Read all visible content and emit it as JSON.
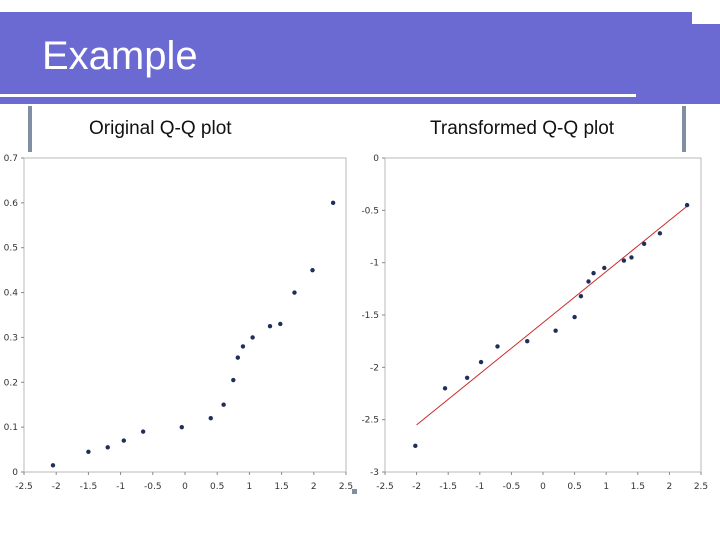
{
  "slide": {
    "title": "Example",
    "left_subtitle": "Original Q-Q plot",
    "right_subtitle": "Transformed Q-Q plot"
  },
  "colors": {
    "title_band": "#6a6ad2",
    "accent_bar": "#7f8ea3",
    "points": "#1f2f5a",
    "fit_line": "#cc2a2a"
  },
  "chart_data": [
    {
      "type": "scatter",
      "title": "Original Q-Q plot",
      "xlim": [
        -2.5,
        2.5
      ],
      "ylim": [
        0,
        0.7
      ],
      "grid": false,
      "x_ticks": [
        -2.5,
        -2,
        -1.5,
        -1,
        -0.5,
        0,
        0.5,
        1,
        1.5,
        2,
        2.5
      ],
      "x_tick_labels": [
        "-2.5",
        "-2",
        "-1.5",
        "-1",
        "-0.5",
        "0",
        "0.5",
        "1",
        "1.5",
        "2",
        "2.5"
      ],
      "y_ticks": [
        0,
        0.1,
        0.2,
        0.3,
        0.4,
        0.5,
        0.6,
        0.7
      ],
      "y_tick_labels": [
        "0",
        "0.1",
        "0.2",
        "0.3",
        "0.4",
        "0.5",
        "0.6",
        "0.7"
      ],
      "points": [
        {
          "x": -2.05,
          "y": 0.015
        },
        {
          "x": -1.5,
          "y": 0.045
        },
        {
          "x": -1.2,
          "y": 0.055
        },
        {
          "x": -0.95,
          "y": 0.07
        },
        {
          "x": -0.65,
          "y": 0.09
        },
        {
          "x": -0.05,
          "y": 0.1
        },
        {
          "x": 0.4,
          "y": 0.12
        },
        {
          "x": 0.6,
          "y": 0.15
        },
        {
          "x": 0.75,
          "y": 0.205
        },
        {
          "x": 0.82,
          "y": 0.255
        },
        {
          "x": 0.9,
          "y": 0.28
        },
        {
          "x": 1.05,
          "y": 0.3
        },
        {
          "x": 1.32,
          "y": 0.325
        },
        {
          "x": 1.48,
          "y": 0.33
        },
        {
          "x": 1.7,
          "y": 0.4
        },
        {
          "x": 1.98,
          "y": 0.45
        },
        {
          "x": 2.3,
          "y": 0.6
        }
      ]
    },
    {
      "type": "scatter",
      "title": "Transformed Q-Q plot",
      "xlim": [
        -2.5,
        2.5
      ],
      "ylim": [
        -3,
        0
      ],
      "grid": false,
      "x_ticks": [
        -2.5,
        -2,
        -1.5,
        -1,
        -0.5,
        0,
        0.5,
        1,
        1.5,
        2,
        2.5
      ],
      "x_tick_labels": [
        "-2.5",
        "-2",
        "-1.5",
        "-1",
        "-0.5",
        "0",
        "0.5",
        "1",
        "1.5",
        "2",
        "2.5"
      ],
      "y_ticks": [
        0,
        -0.5,
        -1,
        -1.5,
        -2,
        -2.5,
        -3
      ],
      "y_tick_labels": [
        "0",
        "-0.5",
        "-1",
        "-1.5",
        "-2",
        "-2.5",
        "-3"
      ],
      "points": [
        {
          "x": -2.02,
          "y": -2.75
        },
        {
          "x": -1.55,
          "y": -2.2
        },
        {
          "x": -1.2,
          "y": -2.1
        },
        {
          "x": -0.98,
          "y": -1.95
        },
        {
          "x": -0.72,
          "y": -1.8
        },
        {
          "x": -0.25,
          "y": -1.75
        },
        {
          "x": 0.2,
          "y": -1.65
        },
        {
          "x": 0.5,
          "y": -1.52
        },
        {
          "x": 0.6,
          "y": -1.32
        },
        {
          "x": 0.72,
          "y": -1.18
        },
        {
          "x": 0.8,
          "y": -1.1
        },
        {
          "x": 0.97,
          "y": -1.05
        },
        {
          "x": 1.28,
          "y": -0.98
        },
        {
          "x": 1.4,
          "y": -0.95
        },
        {
          "x": 1.6,
          "y": -0.82
        },
        {
          "x": 1.85,
          "y": -0.72
        },
        {
          "x": 2.28,
          "y": -0.45
        }
      ],
      "fit_line": {
        "x": [
          -2,
          2.3
        ],
        "y": [
          -2.55,
          -0.45
        ]
      }
    }
  ]
}
